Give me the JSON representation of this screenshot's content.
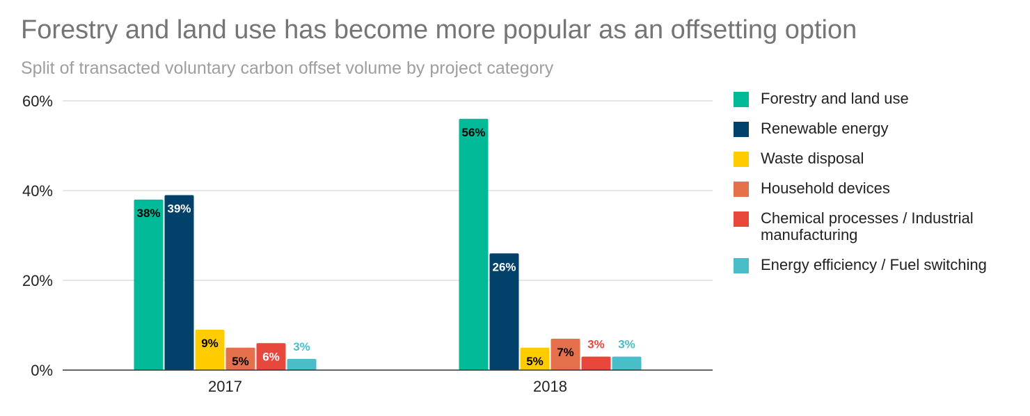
{
  "title": "Forestry and land use has become more popular as an offsetting option",
  "subtitle": "Split of transacted voluntary carbon offset volume by project category",
  "chart_data": {
    "type": "bar",
    "categories": [
      "2017",
      "2018"
    ],
    "series": [
      {
        "name": "Forestry and land use",
        "color": "#00BA98",
        "values": [
          38,
          56
        ],
        "labels": [
          "38%",
          "56%"
        ],
        "label_color": "#000000",
        "label_position": "inside"
      },
      {
        "name": "Renewable energy",
        "color": "#02416A",
        "values": [
          39,
          26
        ],
        "labels": [
          "39%",
          "26%"
        ],
        "label_color": "#ffffff",
        "label_position": "inside"
      },
      {
        "name": "Waste disposal",
        "color": "#FFCC00",
        "values": [
          9,
          5
        ],
        "labels": [
          "9%",
          "5%"
        ],
        "label_color": "#000000",
        "label_position": "inside"
      },
      {
        "name": "Household devices",
        "color": "#E4714B",
        "values": [
          5,
          7
        ],
        "labels": [
          "5%",
          "7%"
        ],
        "label_color": "#000000",
        "label_position": "inside"
      },
      {
        "name": "Chemical processes / Industrial manufacturing",
        "color": "#E8473C",
        "values": [
          6,
          3
        ],
        "labels": [
          "6%",
          "3%"
        ],
        "label_color": "#ffffff",
        "label_color_outside": "#E8473C",
        "label_position": "inside-if-fits"
      },
      {
        "name": "Energy efficiency / Fuel switching",
        "color": "#49BEC8",
        "values": [
          2.5,
          3
        ],
        "labels": [
          "3%",
          "3%"
        ],
        "label_color": "#49BEC8",
        "label_position": "above"
      }
    ],
    "y_ticks": [
      0,
      20,
      40,
      60
    ],
    "y_tick_labels": [
      "0%",
      "20%",
      "40%",
      "60%"
    ],
    "ylim": [
      0,
      60
    ],
    "xlabel": "",
    "ylabel": "",
    "grid": true,
    "legend_position": "right"
  }
}
